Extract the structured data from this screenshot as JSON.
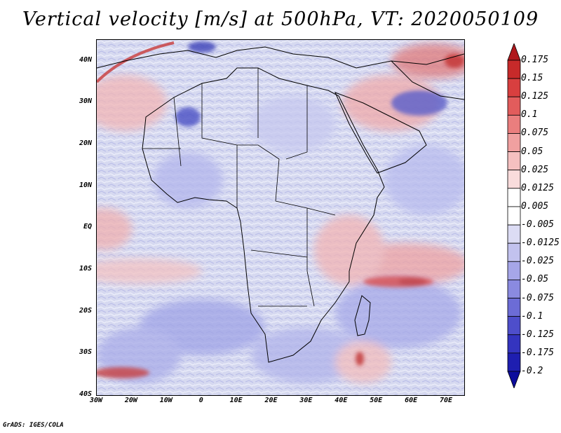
{
  "title": "Vertical velocity [m/s] at 500hPa, VT: 2020050109",
  "credit": "GrADS: IGES/COLA",
  "map": {
    "lat_labels": [
      "40N",
      "30N",
      "20N",
      "10N",
      "EQ",
      "10S",
      "20S",
      "30S",
      "40S"
    ],
    "lat_values": [
      40,
      30,
      20,
      10,
      0,
      -10,
      -20,
      -30,
      -40
    ],
    "lon_labels": [
      "30W",
      "20W",
      "10W",
      "0",
      "10E",
      "20E",
      "30E",
      "40E",
      "50E",
      "60E",
      "70E"
    ],
    "lon_values": [
      -30,
      -20,
      -10,
      0,
      10,
      20,
      30,
      40,
      50,
      60,
      70
    ],
    "lon_range": [
      -30,
      75
    ],
    "lat_range": [
      -40,
      45
    ]
  },
  "colorbar": {
    "labels": [
      "0.175",
      "0.15",
      "0.125",
      "0.1",
      "0.075",
      "0.05",
      "0.025",
      "0.0125",
      "0.005",
      "-0.005",
      "-0.0125",
      "-0.025",
      "-0.05",
      "-0.075",
      "-0.1",
      "-0.125",
      "-0.175",
      "-0.2"
    ],
    "colors": [
      "#b0181c",
      "#c72a2a",
      "#d83f3f",
      "#e25c5c",
      "#ea7e7e",
      "#f0a0a0",
      "#f5c0c0",
      "#f9dcdc",
      "#ffffff",
      "#ffffff",
      "#dcdcf4",
      "#c2c2ee",
      "#a6a6e8",
      "#8a8ae0",
      "#6c6cd6",
      "#4e4ecb",
      "#3434bf",
      "#1e1eb0",
      "#0c0c9c"
    ]
  },
  "legend_title": "",
  "region": "Africa"
}
